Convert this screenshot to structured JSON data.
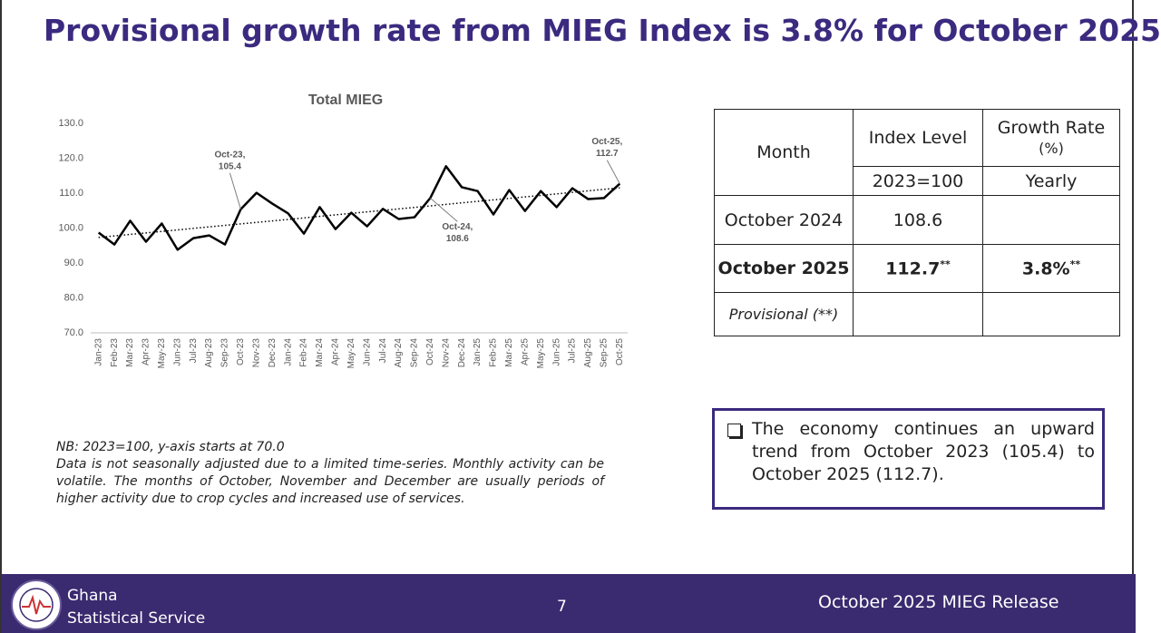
{
  "title": "Provisional growth rate from MIEG Index is 3.8% for October 2025",
  "chart_data": {
    "type": "line",
    "title": "Total MIEG",
    "categories": [
      "Jan-23",
      "Feb-23",
      "Mar-23",
      "Apr-23",
      "May-23",
      "Jun-23",
      "Jul-23",
      "Aug-23",
      "Sep-23",
      "Oct-23",
      "Nov-23",
      "Dec-23",
      "Jan-24",
      "Feb-24",
      "Mar-24",
      "Apr-24",
      "May-24",
      "Jun-24",
      "Jul-24",
      "Aug-24",
      "Sep-24",
      "Oct-24",
      "Nov-24",
      "Dec-24",
      "Jan-25",
      "Feb-25",
      "Mar-25",
      "Apr-25",
      "May-25",
      "Jun-25",
      "Jul-25",
      "Aug-25",
      "Sep-25",
      "Oct-25"
    ],
    "values": [
      98.7,
      95.3,
      102.1,
      96.1,
      101.3,
      93.8,
      97.1,
      97.9,
      95.3,
      105.4,
      110.1,
      107.0,
      104.2,
      98.4,
      106.0,
      99.7,
      104.4,
      100.5,
      105.5,
      102.6,
      103.1,
      108.6,
      117.7,
      111.7,
      110.6,
      103.9,
      110.9,
      104.9,
      110.6,
      106.0,
      111.4,
      108.3,
      108.6,
      112.7
    ],
    "color": "#000000",
    "ylim": [
      70,
      130
    ],
    "yticks": [
      {
        "value": 70,
        "label": "70.0"
      },
      {
        "value": 80,
        "label": "80.0"
      },
      {
        "value": 90,
        "label": "90.0"
      },
      {
        "value": 100,
        "label": "100.0"
      },
      {
        "value": 110,
        "label": "110.0"
      },
      {
        "value": 120,
        "label": "120.0"
      },
      {
        "value": 130,
        "label": "130.0"
      }
    ],
    "grid": false,
    "trendline": true,
    "annotations": [
      [
        "Oct-23,",
        "105.4"
      ],
      [
        "Oct-24,",
        "108.6"
      ],
      [
        "Oct-25,",
        "112.7"
      ]
    ]
  },
  "note": [
    "NB: 2023=100, y-axis starts at 70.0",
    "Data is not seasonally adjusted due to a limited time-series. Monthly activity can be volatile. The months of October, November and December are usually periods of higher activity due to crop cycles and increased use of services."
  ],
  "table": {
    "header": [
      "Month",
      "Index Level",
      "Growth Rate",
      "(%)",
      "2023=100",
      "Yearly"
    ],
    "rows": [
      [
        "October 2024",
        "108.6"
      ],
      [
        "October 2025",
        "112.7",
        "3.8%"
      ],
      [
        "Provisional (**)"
      ]
    ],
    "provisional_mark": "**"
  },
  "callout": "The economy continues an upward trend from October 2023 (105.4) to October 2025 (112.7).",
  "footer": {
    "org": [
      "Ghana",
      "Statistical Service"
    ],
    "page": "7",
    "release": "October 2025 MIEG Release"
  }
}
